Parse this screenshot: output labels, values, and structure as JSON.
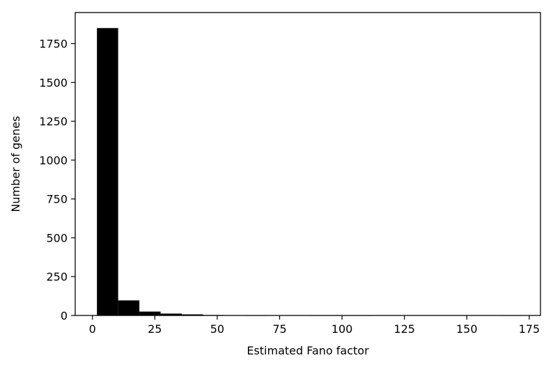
{
  "chart_data": {
    "type": "bar",
    "title": "",
    "xlabel": "Estimated Fano factor",
    "ylabel": "Number of genes",
    "xlim": [
      -6.9,
      179.5
    ],
    "ylim": [
      0,
      1950
    ],
    "xticks": [
      0,
      25,
      50,
      75,
      100,
      125,
      150,
      175
    ],
    "yticks": [
      0,
      250,
      500,
      750,
      1000,
      1250,
      1500,
      1750
    ],
    "bins": [
      {
        "x0": 1.8,
        "x1": 10.3,
        "value": 1850
      },
      {
        "x0": 10.3,
        "x1": 18.8,
        "value": 97
      },
      {
        "x0": 18.8,
        "x1": 27.3,
        "value": 25
      },
      {
        "x0": 27.3,
        "x1": 35.8,
        "value": 12
      },
      {
        "x0": 35.8,
        "x1": 44.3,
        "value": 7
      },
      {
        "x0": 44.3,
        "x1": 52.8,
        "value": 3
      },
      {
        "x0": 52.8,
        "x1": 61.3,
        "value": 2
      },
      {
        "x0": 61.3,
        "x1": 69.8,
        "value": 1
      },
      {
        "x0": 69.8,
        "x1": 78.3,
        "value": 2
      },
      {
        "x0": 78.3,
        "x1": 86.8,
        "value": 0
      },
      {
        "x0": 86.8,
        "x1": 95.3,
        "value": 1
      },
      {
        "x0": 95.3,
        "x1": 103.8,
        "value": 1
      },
      {
        "x0": 103.8,
        "x1": 112.3,
        "value": 1
      },
      {
        "x0": 112.3,
        "x1": 120.8,
        "value": 0
      },
      {
        "x0": 120.8,
        "x1": 129.3,
        "value": 0
      },
      {
        "x0": 129.3,
        "x1": 137.8,
        "value": 0
      },
      {
        "x0": 137.8,
        "x1": 146.3,
        "value": 0
      },
      {
        "x0": 146.3,
        "x1": 154.8,
        "value": 0
      },
      {
        "x0": 154.8,
        "x1": 163.3,
        "value": 0
      },
      {
        "x0": 163.3,
        "x1": 171.8,
        "value": 1
      }
    ],
    "bar_color": "#000000",
    "grid": false,
    "legend": "none"
  }
}
